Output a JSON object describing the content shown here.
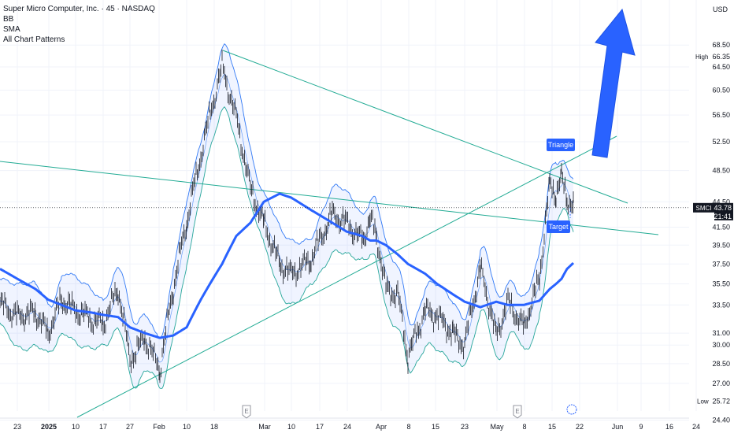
{
  "header": {
    "title": "Super Micro Computer, Inc. · 45 · NASDAQ",
    "indicators": [
      "BB",
      "SMA",
      "All Chart Patterns"
    ]
  },
  "price_axis": {
    "currency": "USD",
    "ticks": [
      "68.50",
      "64.50",
      "60.50",
      "56.50",
      "52.50",
      "48.50",
      "44.50",
      "41.50",
      "39.50",
      "37.50",
      "35.50",
      "33.50",
      "31.00",
      "30.00",
      "28.50",
      "27.00",
      "24.40"
    ],
    "high_label": "High",
    "high_value": "66.35",
    "low_label": "Low",
    "low_value": "25.72",
    "symbol": "SMCI",
    "last_price": "43.78",
    "countdown": "21:41"
  },
  "time_axis": {
    "ticks": [
      "23",
      "2025",
      "10",
      "17",
      "27",
      "Feb",
      "10",
      "18",
      "Mar",
      "10",
      "17",
      "24",
      "Apr",
      "8",
      "15",
      "23",
      "May",
      "8",
      "15",
      "22",
      "Jun",
      "9",
      "16",
      "24"
    ]
  },
  "patterns": {
    "triangle_label": "Triangle",
    "target_label": "Target"
  },
  "event_markers": [
    "E",
    "E"
  ],
  "colors": {
    "background": "#ffffff",
    "price": "#131722",
    "sma": "#2962ff",
    "bb_band": "#3179f5",
    "bb_lower": "#26a69a",
    "pattern_line": "#22ab94",
    "label_bg": "#2962ff",
    "arrow": "#2962ff"
  },
  "chart_data": {
    "type": "line",
    "title": "Super Micro Computer, Inc. · 45 · NASDAQ",
    "xlabel": "",
    "ylabel": "",
    "x": [
      "Dec 19",
      "Dec 23",
      "Dec 27",
      "Jan 2",
      "Jan 6",
      "Jan 10",
      "Jan 14",
      "Jan 17",
      "Jan 22",
      "Jan 27",
      "Jan 30",
      "Feb 3",
      "Feb 7",
      "Feb 10",
      "Feb 13",
      "Feb 18",
      "Feb 20",
      "Feb 24",
      "Feb 28",
      "Mar 4",
      "Mar 7",
      "Mar 10",
      "Mar 13",
      "Mar 17",
      "Mar 20",
      "Mar 24",
      "Mar 27",
      "Apr 1",
      "Apr 4",
      "Apr 8",
      "Apr 11",
      "Apr 15",
      "Apr 18",
      "Apr 23",
      "Apr 28",
      "May 1",
      "May 5",
      "May 8",
      "May 12",
      "May 14",
      "May 15",
      "May 16",
      "May 19",
      "May 20"
    ],
    "series": [
      {
        "values": [
          33.6,
          32.5,
          32.8,
          31.0,
          34.0,
          33.0,
          32.2,
          31.8,
          35.0,
          28.8,
          30.6,
          28.0,
          35.0,
          42.0,
          50.5,
          64.5,
          56.0,
          46.0,
          42.0,
          37.5,
          36.5,
          38.0,
          43.0,
          42.0,
          40.0,
          42.5,
          40.5,
          35.0,
          34.5,
          29.0,
          33.0,
          32.5,
          31.0,
          30.0,
          37.0,
          30.8,
          33.8,
          31.5,
          36.0,
          46.5,
          45.5,
          47.5,
          45.0,
          43.78
        ]
      },
      {
        "values": [
          37.0,
          36.0,
          35.0,
          34.0,
          33.5,
          33.0,
          32.8,
          32.6,
          32.4,
          31.5,
          31.0,
          30.6,
          30.8,
          31.5,
          34.0,
          37.5,
          40.5,
          42.0,
          44.5,
          45.5,
          45.0,
          43.5,
          42.0,
          41.0,
          40.5,
          40.0,
          40.0,
          39.5,
          38.5,
          37.5,
          36.5,
          35.5,
          34.5,
          33.8,
          33.3,
          33.8,
          33.5,
          33.5,
          33.9,
          35.0,
          35.5,
          36.0,
          37.0,
          37.6
        ]
      }
    ],
    "ylim": [
      23.0,
      72.0
    ],
    "y_scale": "log",
    "grid": true,
    "high": 66.35,
    "low": 25.72,
    "last": 43.78
  }
}
